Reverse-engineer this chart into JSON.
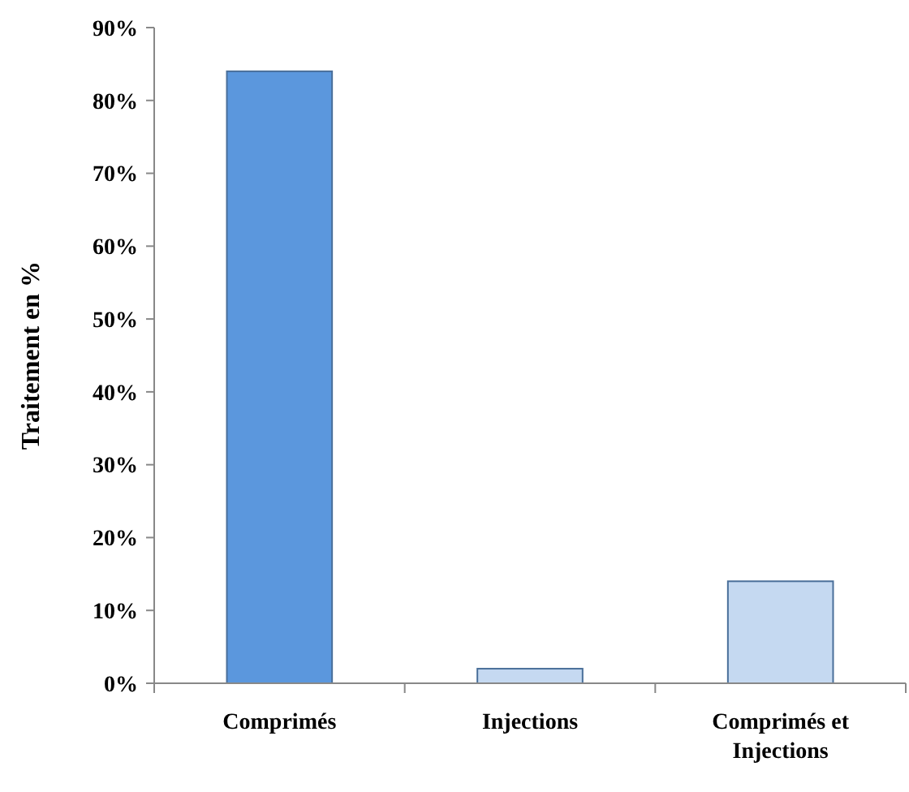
{
  "chart_data": {
    "type": "bar",
    "ylabel": "Traitement en %",
    "categories": [
      "Comprimés",
      "Injections",
      "Comprimés et Injections"
    ],
    "values": [
      84,
      2,
      14
    ],
    "colors": [
      "#5b97dd",
      "#c5d9f1",
      "#c5d9f1"
    ],
    "ylim": [
      0,
      90
    ],
    "yticks": [
      {
        "value": 0,
        "label": "0%"
      },
      {
        "value": 10,
        "label": "10%"
      },
      {
        "value": 20,
        "label": "20%"
      },
      {
        "value": 30,
        "label": "30%"
      },
      {
        "value": 40,
        "label": "40%"
      },
      {
        "value": 50,
        "label": "50%"
      },
      {
        "value": 60,
        "label": "60%"
      },
      {
        "value": 70,
        "label": "70%"
      },
      {
        "value": 80,
        "label": "80%"
      },
      {
        "value": 90,
        "label": "90%"
      }
    ],
    "grid": false
  }
}
